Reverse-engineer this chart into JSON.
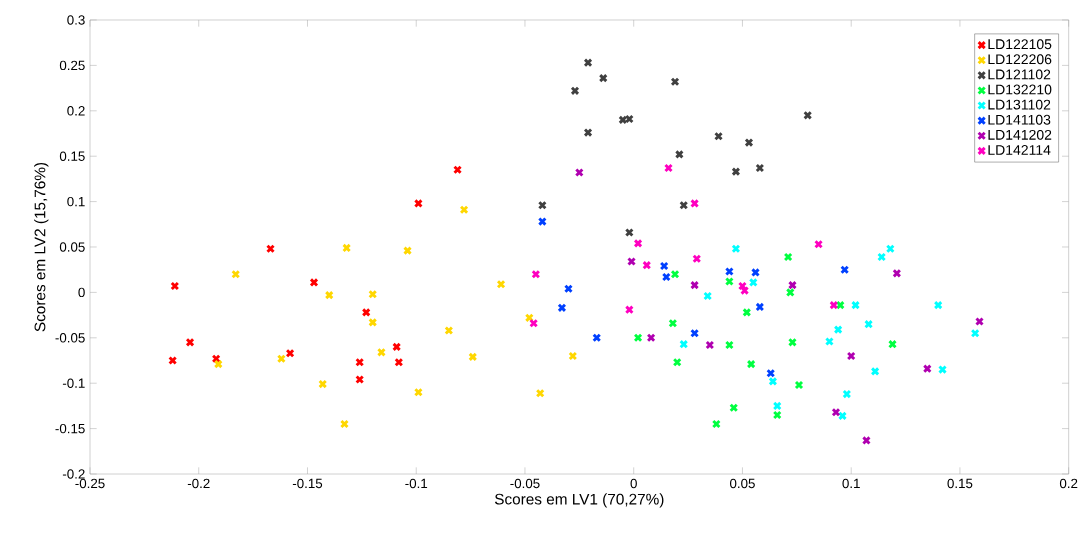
{
  "chart_data": {
    "type": "scatter",
    "xlabel": "Scores em LV1 (70,27%)",
    "ylabel": "Scores em LV2 (15,76%)",
    "xlim": [
      -0.25,
      0.2
    ],
    "ylim": [
      -0.2,
      0.3
    ],
    "xticks": [
      -0.25,
      -0.2,
      -0.15,
      -0.1,
      -0.05,
      0,
      0.05,
      0.1,
      0.15,
      0.2
    ],
    "yticks": [
      -0.2,
      -0.15,
      -0.1,
      -0.05,
      0,
      0.05,
      0.1,
      0.15,
      0.2,
      0.25,
      0.3
    ],
    "grid": false,
    "legend": "top right",
    "marker": "cross",
    "series": [
      {
        "name": "LD122105",
        "color": "#ff0000",
        "x": [
          -0.211,
          -0.204,
          -0.212,
          -0.192,
          -0.167,
          -0.158,
          -0.147,
          -0.126,
          -0.126,
          -0.123,
          -0.109,
          -0.108,
          -0.099,
          -0.081
        ],
        "values": [
          0.007,
          -0.055,
          -0.075,
          -0.073,
          0.048,
          -0.067,
          0.011,
          -0.077,
          -0.096,
          -0.022,
          -0.06,
          -0.077,
          0.098,
          0.135
        ]
      },
      {
        "name": "LD122206",
        "color": "#ffd700",
        "x": [
          -0.183,
          -0.191,
          -0.162,
          -0.143,
          -0.14,
          -0.132,
          -0.133,
          -0.12,
          -0.12,
          -0.116,
          -0.104,
          -0.099,
          -0.085,
          -0.078,
          -0.074,
          -0.061,
          -0.048,
          -0.043,
          -0.028
        ],
        "values": [
          0.02,
          -0.079,
          -0.073,
          -0.101,
          -0.003,
          0.049,
          -0.145,
          -0.002,
          -0.033,
          -0.066,
          0.046,
          -0.11,
          -0.042,
          0.091,
          -0.071,
          0.009,
          -0.028,
          -0.111,
          -0.07
        ]
      },
      {
        "name": "LD121102",
        "color": "#404040",
        "x": [
          -0.042,
          -0.027,
          -0.021,
          -0.021,
          -0.014,
          -0.005,
          -0.002,
          -0.002,
          0.019,
          0.021,
          0.023,
          0.039,
          0.047,
          0.053,
          0.058,
          0.08
        ],
        "values": [
          0.096,
          0.222,
          0.253,
          0.176,
          0.236,
          0.19,
          0.191,
          0.066,
          0.232,
          0.152,
          0.096,
          0.172,
          0.133,
          0.165,
          0.137,
          0.195
        ]
      },
      {
        "name": "LD132210",
        "color": "#00ff40",
        "x": [
          0.002,
          0.018,
          0.019,
          0.02,
          0.038,
          0.044,
          0.046,
          0.044,
          0.052,
          0.054,
          0.066,
          0.071,
          0.072,
          0.073,
          0.076,
          0.095,
          0.119
        ],
        "values": [
          -0.05,
          -0.034,
          0.02,
          -0.077,
          -0.145,
          -0.058,
          -0.127,
          0.012,
          -0.022,
          -0.079,
          -0.135,
          0.039,
          0.0,
          -0.055,
          -0.102,
          -0.014,
          -0.057
        ]
      },
      {
        "name": "LD131102",
        "color": "#00ffff",
        "x": [
          0.023,
          0.034,
          0.047,
          0.055,
          0.064,
          0.066,
          0.09,
          0.094,
          0.096,
          0.098,
          0.102,
          0.108,
          0.111,
          0.114,
          0.118,
          0.14,
          0.142,
          0.157
        ],
        "values": [
          -0.057,
          -0.004,
          0.048,
          0.011,
          -0.098,
          -0.125,
          -0.054,
          -0.041,
          -0.136,
          -0.112,
          -0.014,
          -0.035,
          -0.087,
          0.039,
          0.048,
          -0.014,
          -0.085,
          -0.045
        ]
      },
      {
        "name": "LD141103",
        "color": "#0040ff",
        "x": [
          -0.042,
          -0.03,
          -0.033,
          -0.017,
          0.014,
          0.015,
          0.028,
          0.044,
          0.056,
          0.058,
          0.063,
          0.097
        ],
        "values": [
          0.078,
          0.004,
          -0.017,
          -0.05,
          0.029,
          0.017,
          -0.045,
          0.023,
          0.022,
          -0.016,
          -0.089,
          0.025
        ]
      },
      {
        "name": "LD141202",
        "color": "#b000b0",
        "x": [
          -0.025,
          -0.001,
          0.008,
          0.028,
          0.035,
          0.073,
          0.093,
          0.1,
          0.107,
          0.121,
          0.135,
          0.159
        ],
        "values": [
          0.132,
          0.034,
          -0.05,
          0.008,
          -0.058,
          0.008,
          -0.132,
          -0.07,
          -0.163,
          0.021,
          -0.084,
          -0.032
        ]
      },
      {
        "name": "LD142114",
        "color": "#ff00c0",
        "x": [
          -0.045,
          -0.046,
          -0.002,
          0.002,
          0.006,
          0.016,
          0.028,
          0.029,
          0.05,
          0.051,
          0.085,
          0.092
        ],
        "values": [
          0.02,
          -0.034,
          -0.019,
          0.054,
          0.03,
          0.137,
          0.098,
          0.037,
          0.007,
          0.002,
          0.053,
          -0.014
        ]
      }
    ]
  }
}
